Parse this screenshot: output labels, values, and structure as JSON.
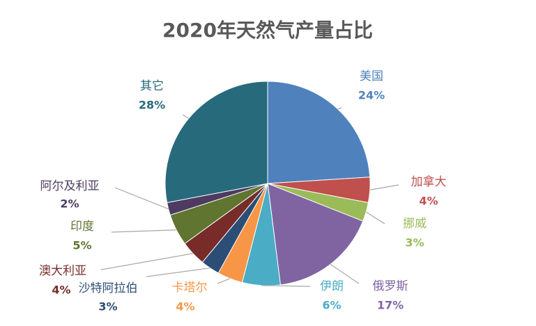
{
  "chart_data": {
    "type": "pie",
    "title": "2020年天然气产量占比",
    "categories": [
      "美国",
      "加拿大",
      "挪威",
      "俄罗斯",
      "伊朗",
      "卡塔尔",
      "沙特阿拉伯",
      "澳大利亚",
      "印度",
      "阿尔及利亚",
      "其它"
    ],
    "values": [
      24,
      4,
      3,
      17,
      6,
      4,
      3,
      4,
      5,
      2,
      28
    ],
    "value_labels": [
      "24%",
      "4%",
      "3%",
      "17%",
      "6%",
      "4%",
      "3%",
      "4%",
      "5%",
      "2%",
      "28%"
    ],
    "colors": [
      "#4f81bd",
      "#c0504d",
      "#9bbb59",
      "#8064a2",
      "#4bacc6",
      "#f79646",
      "#2c4d75",
      "#772c2a",
      "#5f7530",
      "#4d3b62",
      "#276a7c"
    ]
  }
}
